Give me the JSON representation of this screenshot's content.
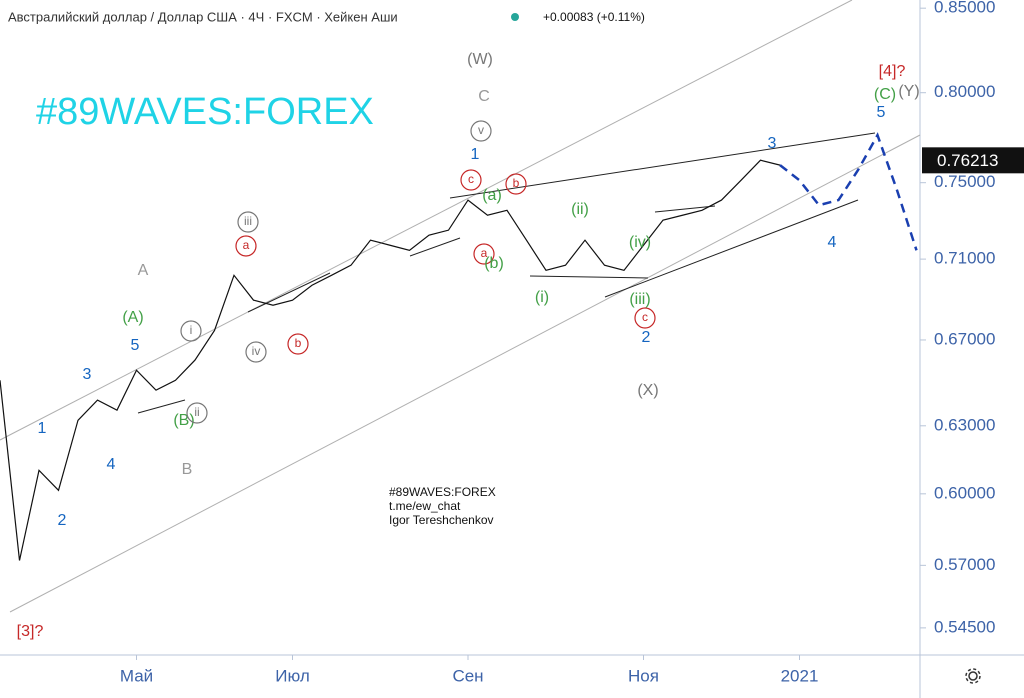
{
  "chart_data": {
    "type": "line",
    "title": "Австралийский доллар / Доллар США · 4Ч · FXCM · Хейкен Аши",
    "subtitle": "+0.00083 (+0.11%)",
    "watermark": "#89WAVES:FOREX",
    "credits": [
      "#89WAVES:FOREX",
      "t.me/ew_chat",
      "Igor Tereshchenkov"
    ],
    "categories": [
      null,
      null,
      null,
      null,
      null,
      null,
      null,
      "Май",
      null,
      null,
      null,
      null,
      null,
      null,
      null,
      "Июл",
      null,
      null,
      null,
      null,
      null,
      null,
      null,
      null,
      "Сен",
      null,
      null,
      null,
      null,
      null,
      null,
      null,
      null,
      "Ноя",
      null,
      null,
      null,
      null,
      null,
      null,
      null,
      "2021",
      null,
      null,
      null,
      null,
      null,
      null
    ],
    "series": [
      {
        "color": "#111111",
        "values": [
          0.6509,
          0.572,
          0.6102,
          0.6015,
          0.6325,
          0.6417,
          0.6371,
          0.6556,
          0.6463,
          0.6509,
          0.6604,
          0.6746,
          0.7018,
          0.6894,
          0.6869,
          0.6894,
          0.6968,
          0.7018,
          0.7069,
          0.7197,
          0.7171,
          0.7145,
          0.7223,
          0.7249,
          0.7407,
          0.7327,
          0.7353,
          0.7197,
          0.7043,
          0.7069,
          0.7197,
          0.7069,
          0.7043,
          0.7171,
          0.7301,
          0.7327,
          0.7353,
          0.7407,
          0.7513,
          0.7622,
          0.7595,
          null,
          null,
          null,
          null,
          null,
          null,
          null
        ]
      },
      {
        "color": "#1a3fb0",
        "dashed": true,
        "values": [
          null,
          null,
          null,
          null,
          null,
          null,
          null,
          null,
          null,
          null,
          null,
          null,
          null,
          null,
          null,
          null,
          null,
          null,
          null,
          null,
          null,
          null,
          null,
          null,
          null,
          null,
          null,
          null,
          null,
          null,
          null,
          null,
          null,
          null,
          null,
          null,
          null,
          null,
          null,
          null,
          0.7595,
          0.7513,
          0.738,
          0.7407,
          0.7568,
          0.776,
          0.746,
          0.7145
        ]
      }
    ],
    "log_scale": true,
    "ylim": [
      0.5345,
      0.855
    ],
    "yticks": [
      {
        "value": 0.85,
        "label": "0.85000"
      },
      {
        "value": 0.8,
        "label": "0.80000"
      },
      {
        "value": 0.75,
        "label": "0.75000"
      },
      {
        "value": 0.71,
        "label": "0.71000"
      },
      {
        "value": 0.67,
        "label": "0.67000"
      },
      {
        "value": 0.63,
        "label": "0.63000"
      },
      {
        "value": 0.6,
        "label": "0.60000"
      },
      {
        "value": 0.57,
        "label": "0.57000"
      },
      {
        "value": 0.545,
        "label": "0.54500"
      }
    ],
    "price_label": {
      "value": 0.76213,
      "label": "0.76213"
    },
    "annotations": [
      {
        "text": "[3]?",
        "color": "#c62828"
      },
      {
        "text": "[4]?",
        "color": "#c62828"
      },
      {
        "text": "(W)",
        "color": "#777777"
      },
      {
        "text": "C",
        "color": "#999999"
      },
      {
        "text": "v",
        "color": "#777777",
        "circled": true
      },
      {
        "text": "1",
        "color": "#1565c0"
      },
      {
        "text": "c",
        "color": "#c62828",
        "circled": true
      },
      {
        "text": "b",
        "color": "#c62828",
        "circled": true
      },
      {
        "text": "(a)",
        "color": "#43a047"
      },
      {
        "text": "a",
        "color": "#c62828",
        "circled": true
      },
      {
        "text": "(b)",
        "color": "#43a047"
      },
      {
        "text": "(ii)",
        "color": "#43a047"
      },
      {
        "text": "(iv)",
        "color": "#43a047"
      },
      {
        "text": "(i)",
        "color": "#43a047"
      },
      {
        "text": "(iii)",
        "color": "#43a047"
      },
      {
        "text": "c",
        "color": "#c62828",
        "circled": true
      },
      {
        "text": "2",
        "color": "#1565c0"
      },
      {
        "text": "(X)",
        "color": "#777777"
      },
      {
        "text": "3",
        "color": "#1565c0"
      },
      {
        "text": "4",
        "color": "#1565c0"
      },
      {
        "text": "5",
        "color": "#1565c0"
      },
      {
        "text": "(C)",
        "color": "#43a047"
      },
      {
        "text": "(Y)",
        "color": "#777777"
      },
      {
        "text": "A",
        "color": "#999999"
      },
      {
        "text": "B",
        "color": "#999999"
      },
      {
        "text": "(A)",
        "color": "#43a047"
      },
      {
        "text": "5",
        "color": "#1565c0"
      },
      {
        "text": "3",
        "color": "#1565c0"
      },
      {
        "text": "1",
        "color": "#1565c0"
      },
      {
        "text": "4",
        "color": "#1565c0"
      },
      {
        "text": "2",
        "color": "#1565c0"
      },
      {
        "text": "(B)",
        "color": "#43a047"
      },
      {
        "text": "ii",
        "color": "#777777",
        "circled": true
      },
      {
        "text": "i",
        "color": "#777777",
        "circled": true
      },
      {
        "text": "iv",
        "color": "#777777",
        "circled": true
      },
      {
        "text": "iii",
        "color": "#777777",
        "circled": true
      },
      {
        "text": "a",
        "color": "#c62828",
        "circled": true
      },
      {
        "text": "b",
        "color": "#c62828",
        "circled": true
      }
    ]
  }
}
